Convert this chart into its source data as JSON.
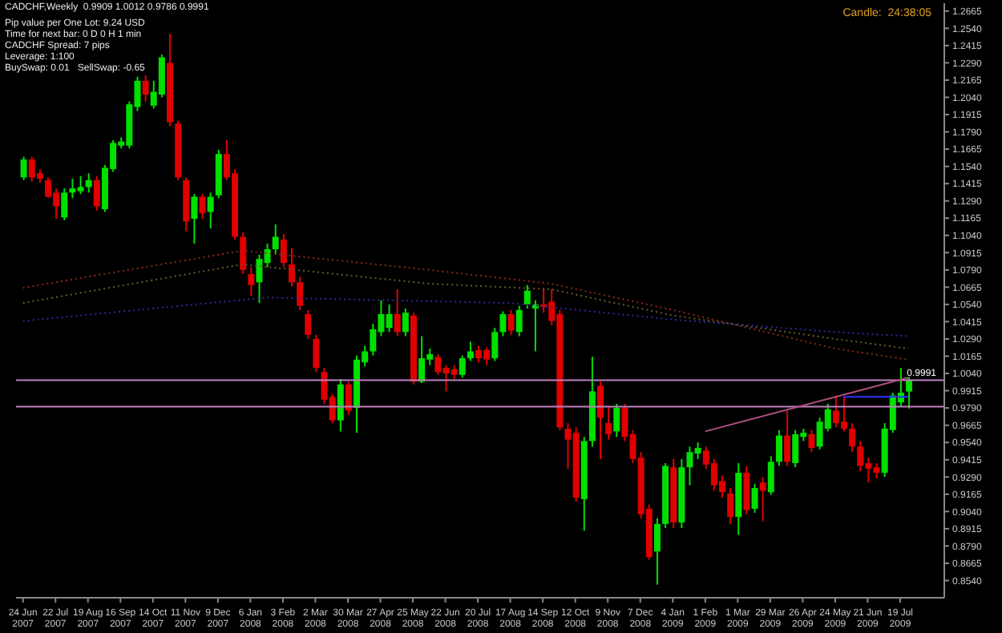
{
  "chart_data": {
    "type": "candlestick",
    "title": "CADCHF,Weekly  0.9909 1.0012 0.9786 0.9991",
    "annotations": [
      "Pip value per One Lot: 9.24 USD",
      "Time for next bar: 0 D 0 H 1 min",
      "CADCHF Spread: 7 pips",
      "Leverage: 1:100",
      "BuySwap: 0.01   SellSwap: -0.65",
      "Candle:  24:38:05"
    ],
    "x": [
      "2007-06-24",
      "2007-07-01",
      "2007-07-08",
      "2007-07-15",
      "2007-07-22",
      "2007-07-29",
      "2007-08-05",
      "2007-08-12",
      "2007-08-19",
      "2007-08-26",
      "2007-09-02",
      "2007-09-09",
      "2007-09-16",
      "2007-09-23",
      "2007-09-30",
      "2007-10-07",
      "2007-10-14",
      "2007-10-21",
      "2007-10-28",
      "2007-11-04",
      "2007-11-11",
      "2007-11-18",
      "2007-11-25",
      "2007-12-02",
      "2007-12-09",
      "2007-12-16",
      "2007-12-23",
      "2007-12-30",
      "2008-01-06",
      "2008-01-13",
      "2008-01-20",
      "2008-01-27",
      "2008-02-03",
      "2008-02-10",
      "2008-02-17",
      "2008-02-24",
      "2008-03-02",
      "2008-03-09",
      "2008-03-16",
      "2008-03-23",
      "2008-03-30",
      "2008-04-06",
      "2008-04-13",
      "2008-04-20",
      "2008-04-27",
      "2008-05-04",
      "2008-05-11",
      "2008-05-18",
      "2008-05-25",
      "2008-06-01",
      "2008-06-08",
      "2008-06-15",
      "2008-06-22",
      "2008-06-29",
      "2008-07-06",
      "2008-07-13",
      "2008-07-20",
      "2008-07-27",
      "2008-08-03",
      "2008-08-10",
      "2008-08-17",
      "2008-08-24",
      "2008-08-31",
      "2008-09-07",
      "2008-09-14",
      "2008-09-21",
      "2008-09-28",
      "2008-10-05",
      "2008-10-12",
      "2008-10-19",
      "2008-10-26",
      "2008-11-02",
      "2008-11-09",
      "2008-11-16",
      "2008-11-23",
      "2008-11-30",
      "2008-12-07",
      "2008-12-14",
      "2008-12-21",
      "2008-12-28",
      "2009-01-04",
      "2009-01-11",
      "2009-01-18",
      "2009-01-25",
      "2009-02-01",
      "2009-02-08",
      "2009-02-15",
      "2009-02-22",
      "2009-03-01",
      "2009-03-08",
      "2009-03-15",
      "2009-03-22",
      "2009-03-29",
      "2009-04-05",
      "2009-04-12",
      "2009-04-19",
      "2009-04-26",
      "2009-05-03",
      "2009-05-10",
      "2009-05-17",
      "2009-05-24",
      "2009-05-31",
      "2009-06-07",
      "2009-06-14",
      "2009-06-21",
      "2009-06-28",
      "2009-07-05",
      "2009-07-12",
      "2009-07-19",
      "2009-07-26"
    ],
    "ohlc": [
      [
        1.146,
        1.161,
        1.144,
        1.159
      ],
      [
        1.159,
        1.161,
        1.143,
        1.146
      ],
      [
        1.149,
        1.152,
        1.142,
        1.145
      ],
      [
        1.144,
        1.146,
        1.131,
        1.132
      ],
      [
        1.135,
        1.138,
        1.116,
        1.125
      ],
      [
        1.117,
        1.138,
        1.115,
        1.135
      ],
      [
        1.135,
        1.145,
        1.131,
        1.138
      ],
      [
        1.136,
        1.147,
        1.134,
        1.139
      ],
      [
        1.139,
        1.149,
        1.135,
        1.144
      ],
      [
        1.144,
        1.147,
        1.122,
        1.125
      ],
      [
        1.123,
        1.155,
        1.121,
        1.153
      ],
      [
        1.152,
        1.173,
        1.15,
        1.171
      ],
      [
        1.169,
        1.175,
        1.167,
        1.172
      ],
      [
        1.169,
        1.201,
        1.167,
        1.199
      ],
      [
        1.197,
        1.219,
        1.194,
        1.216
      ],
      [
        1.216,
        1.22,
        1.201,
        1.206
      ],
      [
        1.198,
        1.216,
        1.196,
        1.208
      ],
      [
        1.206,
        1.235,
        1.204,
        1.233
      ],
      [
        1.229,
        1.25,
        1.183,
        1.186
      ],
      [
        1.185,
        1.187,
        1.144,
        1.146
      ],
      [
        1.144,
        1.146,
        1.107,
        1.114
      ],
      [
        1.116,
        1.134,
        1.098,
        1.132
      ],
      [
        1.132,
        1.134,
        1.116,
        1.12
      ],
      [
        1.121,
        1.135,
        1.109,
        1.132
      ],
      [
        1.133,
        1.166,
        1.131,
        1.163
      ],
      [
        1.163,
        1.173,
        1.144,
        1.146
      ],
      [
        1.149,
        1.152,
        1.101,
        1.103
      ],
      [
        1.103,
        1.106,
        1.076,
        1.079
      ],
      [
        1.076,
        1.081,
        1.06,
        1.068
      ],
      [
        1.07,
        1.09,
        1.055,
        1.087
      ],
      [
        1.084,
        1.098,
        1.081,
        1.094
      ],
      [
        1.094,
        1.112,
        1.09,
        1.103
      ],
      [
        1.101,
        1.105,
        1.081,
        1.084
      ],
      [
        1.083,
        1.095,
        1.067,
        1.07
      ],
      [
        1.07,
        1.074,
        1.05,
        1.053
      ],
      [
        1.047,
        1.05,
        1.029,
        1.032
      ],
      [
        1.029,
        1.032,
        1.005,
        1.008
      ],
      [
        1.005,
        1.008,
        0.982,
        0.985
      ],
      [
        0.987,
        0.989,
        0.968,
        0.97
      ],
      [
        0.97,
        1.0,
        0.962,
        0.996
      ],
      [
        0.996,
        0.998,
        0.974,
        0.977
      ],
      [
        0.979,
        1.017,
        0.961,
        1.014
      ],
      [
        1.012,
        1.024,
        1.009,
        1.02
      ],
      [
        1.02,
        1.04,
        1.017,
        1.036
      ],
      [
        1.034,
        1.057,
        1.031,
        1.047
      ],
      [
        1.037,
        1.054,
        1.034,
        1.047
      ],
      [
        1.047,
        1.065,
        1.031,
        1.034
      ],
      [
        1.034,
        1.051,
        1.031,
        1.048
      ],
      [
        1.046,
        1.048,
        0.996,
        0.998
      ],
      [
        0.998,
        1.031,
        0.997,
        1.015
      ],
      [
        1.014,
        1.022,
        1.01,
        1.018
      ],
      [
        1.016,
        1.018,
        1.003,
        1.005
      ],
      [
        1.008,
        1.01,
        0.991,
        1.004
      ],
      [
        1.007,
        1.01,
        1.0,
        1.003
      ],
      [
        1.003,
        1.017,
        1.001,
        1.015
      ],
      [
        1.015,
        1.027,
        1.013,
        1.02
      ],
      [
        1.021,
        1.024,
        1.012,
        1.015
      ],
      [
        1.021,
        1.023,
        1.01,
        1.014
      ],
      [
        1.015,
        1.037,
        1.013,
        1.034
      ],
      [
        1.034,
        1.049,
        1.031,
        1.047
      ],
      [
        1.047,
        1.05,
        1.032,
        1.035
      ],
      [
        1.034,
        1.053,
        1.031,
        1.05
      ],
      [
        1.054,
        1.068,
        1.051,
        1.064
      ],
      [
        1.051,
        1.057,
        1.02,
        1.054
      ],
      [
        1.054,
        1.065,
        1.048,
        1.052
      ],
      [
        1.056,
        1.065,
        1.039,
        1.042
      ],
      [
        1.047,
        1.05,
        0.963,
        0.965
      ],
      [
        0.964,
        0.968,
        0.935,
        0.956
      ],
      [
        0.961,
        0.965,
        0.911,
        0.914
      ],
      [
        0.913,
        0.958,
        0.89,
        0.955
      ],
      [
        0.955,
        1.016,
        0.951,
        0.991
      ],
      [
        0.995,
        0.998,
        0.942,
        0.972
      ],
      [
        0.968,
        0.98,
        0.956,
        0.96
      ],
      [
        0.962,
        0.982,
        0.958,
        0.979
      ],
      [
        0.979,
        0.982,
        0.955,
        0.958
      ],
      [
        0.96,
        0.963,
        0.939,
        0.942
      ],
      [
        0.943,
        0.947,
        0.899,
        0.902
      ],
      [
        0.906,
        0.909,
        0.869,
        0.871
      ],
      [
        0.875,
        0.899,
        0.851,
        0.895
      ],
      [
        0.895,
        0.939,
        0.892,
        0.937
      ],
      [
        0.936,
        0.942,
        0.892,
        0.896
      ],
      [
        0.896,
        0.942,
        0.892,
        0.936
      ],
      [
        0.936,
        0.951,
        0.923,
        0.947
      ],
      [
        0.946,
        0.954,
        0.942,
        0.95
      ],
      [
        0.948,
        0.951,
        0.935,
        0.938
      ],
      [
        0.939,
        0.942,
        0.919,
        0.923
      ],
      [
        0.926,
        0.93,
        0.914,
        0.918
      ],
      [
        0.917,
        0.921,
        0.895,
        0.9
      ],
      [
        0.9,
        0.939,
        0.887,
        0.932
      ],
      [
        0.932,
        0.937,
        0.902,
        0.905
      ],
      [
        0.906,
        0.924,
        0.903,
        0.921
      ],
      [
        0.925,
        0.929,
        0.897,
        0.919
      ],
      [
        0.918,
        0.944,
        0.916,
        0.94
      ],
      [
        0.94,
        0.963,
        0.937,
        0.959
      ],
      [
        0.959,
        0.977,
        0.937,
        0.94
      ],
      [
        0.939,
        0.963,
        0.936,
        0.96
      ],
      [
        0.958,
        0.964,
        0.955,
        0.961
      ],
      [
        0.96,
        0.963,
        0.947,
        0.95
      ],
      [
        0.951,
        0.972,
        0.949,
        0.969
      ],
      [
        0.964,
        0.982,
        0.962,
        0.978
      ],
      [
        0.977,
        0.988,
        0.965,
        0.968
      ],
      [
        0.969,
        0.987,
        0.962,
        0.964
      ],
      [
        0.964,
        0.968,
        0.947,
        0.951
      ],
      [
        0.951,
        0.955,
        0.933,
        0.937
      ],
      [
        0.939,
        0.943,
        0.925,
        0.935
      ],
      [
        0.936,
        0.939,
        0.928,
        0.932
      ],
      [
        0.932,
        0.968,
        0.929,
        0.964
      ],
      [
        0.963,
        0.99,
        0.961,
        0.988
      ],
      [
        0.983,
        1.008,
        0.98,
        0.99
      ],
      [
        0.9909,
        1.0012,
        0.9786,
        0.9991
      ]
    ],
    "colors": [
      "#00e000",
      "#e00000",
      "#e00000",
      "#e00000",
      "#e00000",
      "#00e000",
      "#00e000",
      "#00e000",
      "#00e000",
      "#e00000",
      "#00e000",
      "#00e000",
      "#00e000",
      "#00e000",
      "#00e000",
      "#e00000",
      "#00e000",
      "#00e000",
      "#e00000",
      "#e00000",
      "#e00000",
      "#00e000",
      "#e00000",
      "#00e000",
      "#00e000",
      "#e00000",
      "#e00000",
      "#e00000",
      "#e00000",
      "#00e000",
      "#00e000",
      "#00e000",
      "#e00000",
      "#e00000",
      "#e00000",
      "#e00000",
      "#e00000",
      "#e00000",
      "#e00000",
      "#00e000",
      "#e00000",
      "#00e000",
      "#00e000",
      "#00e000",
      "#00e000",
      "#00e000",
      "#e00000",
      "#00e000",
      "#e00000",
      "#00e000",
      "#00e000",
      "#e00000",
      "#e00000",
      "#e00000",
      "#00e000",
      "#00e000",
      "#e00000",
      "#e00000",
      "#00e000",
      "#00e000",
      "#e00000",
      "#00e000",
      "#00e000",
      "#00e000",
      "#e00000",
      "#e00000",
      "#e00000",
      "#e00000",
      "#e00000",
      "#00e000",
      "#00e000",
      "#e00000",
      "#e00000",
      "#00e000",
      "#e00000",
      "#e00000",
      "#e00000",
      "#e00000",
      "#00e000",
      "#00e000",
      "#e00000",
      "#00e000",
      "#00e000",
      "#00e000",
      "#e00000",
      "#e00000",
      "#e00000",
      "#e00000",
      "#00e000",
      "#e00000",
      "#00e000",
      "#e00000",
      "#00e000",
      "#00e000",
      "#e00000",
      "#00e000",
      "#00e000",
      "#e00000",
      "#00e000",
      "#00e000",
      "#e00000",
      "#e00000",
      "#e00000",
      "#e00000",
      "#e00000",
      "#e00000",
      "#00e000",
      "#00e000",
      "#00e000",
      "#00e000"
    ],
    "series": [
      {
        "type": "line",
        "color": "#8b2a1a",
        "line_style": "dotted",
        "x": [
          "2007-06-24",
          "2007-12-30",
          "2008-06-08",
          "2008-09-21",
          "2009-01-04",
          "2009-05-24",
          "2009-07-26"
        ],
        "values": [
          1.066,
          1.093,
          1.079,
          1.069,
          1.05,
          1.022,
          1.014
        ]
      },
      {
        "type": "line",
        "color": "#6b5a2a",
        "line_style": "dotted",
        "x": [
          "2007-06-24",
          "2007-12-30",
          "2008-06-08",
          "2008-09-21",
          "2009-01-04",
          "2009-05-24",
          "2009-07-26"
        ],
        "values": [
          1.055,
          1.083,
          1.069,
          1.065,
          1.046,
          1.029,
          1.022
        ]
      },
      {
        "type": "line",
        "color": "#2a2a9b",
        "line_style": "dotted",
        "x": [
          "2007-06-24",
          "2008-01-20",
          "2008-08-17",
          "2009-01-04",
          "2009-05-24",
          "2009-07-26"
        ],
        "values": [
          1.042,
          1.059,
          1.055,
          1.043,
          1.034,
          1.031
        ]
      },
      {
        "type": "line",
        "color": "#b05080",
        "line_style": "solid",
        "x": [
          "2009-02-01",
          "2009-07-26"
        ],
        "values": [
          0.962,
          1.001
        ]
      },
      {
        "type": "line",
        "color": "#3030ff",
        "line_style": "solid",
        "x": [
          "2009-05-31",
          "2009-07-26"
        ],
        "values": [
          0.987,
          0.987
        ]
      }
    ],
    "ref_lines": [
      {
        "axis": "y",
        "value": 0.9991,
        "label": "0.9991",
        "color": "#c080c0"
      },
      {
        "axis": "y",
        "value": 0.98,
        "color": "#c080c0"
      }
    ],
    "xlim": [
      "2007-06-18",
      "2009-08-26"
    ],
    "xticks": [
      {
        "value": "2007-06-24",
        "label": "24 Jun 2007"
      },
      {
        "value": "2007-07-22",
        "label": "22 Jul 2007"
      },
      {
        "value": "2007-08-19",
        "label": "19 Aug 2007"
      },
      {
        "value": "2007-09-16",
        "label": "16 Sep 2007"
      },
      {
        "value": "2007-10-14",
        "label": "14 Oct 2007"
      },
      {
        "value": "2007-11-11",
        "label": "11 Nov 2007"
      },
      {
        "value": "2007-12-09",
        "label": "9 Dec 2007"
      },
      {
        "value": "2008-01-06",
        "label": "6 Jan 2008"
      },
      {
        "value": "2008-02-03",
        "label": "3 Feb 2008"
      },
      {
        "value": "2008-03-02",
        "label": "2 Mar 2008"
      },
      {
        "value": "2008-03-30",
        "label": "30 Mar 2008"
      },
      {
        "value": "2008-04-27",
        "label": "27 Apr 2008"
      },
      {
        "value": "2008-05-25",
        "label": "25 May 2008"
      },
      {
        "value": "2008-06-22",
        "label": "22 Jun 2008"
      },
      {
        "value": "2008-07-20",
        "label": "20 Jul 2008"
      },
      {
        "value": "2008-08-17",
        "label": "17 Aug 2008"
      },
      {
        "value": "2008-09-14",
        "label": "14 Sep 2008"
      },
      {
        "value": "2008-10-12",
        "label": "12 Oct 2008"
      },
      {
        "value": "2008-11-09",
        "label": "9 Nov 2008"
      },
      {
        "value": "2008-12-07",
        "label": "7 Dec 2008"
      },
      {
        "value": "2009-01-04",
        "label": "4 Jan 2009"
      },
      {
        "value": "2009-02-01",
        "label": "1 Feb 2009"
      },
      {
        "value": "2009-03-01",
        "label": "1 Mar 2009"
      },
      {
        "value": "2009-03-29",
        "label": "29 Mar 2009"
      },
      {
        "value": "2009-04-26",
        "label": "26 Apr 2009"
      },
      {
        "value": "2009-05-24",
        "label": "24 May 2009"
      },
      {
        "value": "2009-06-21",
        "label": "21 Jun 2009"
      },
      {
        "value": "2009-07-19",
        "label": "19 Jul 2009"
      }
    ],
    "ylim": [
      0.8415,
      1.2722
    ],
    "yticks": [
      {
        "value": 0.854,
        "label": "0.8540"
      },
      {
        "value": 0.8665,
        "label": "0.8665"
      },
      {
        "value": 0.879,
        "label": "0.8790"
      },
      {
        "value": 0.8915,
        "label": "0.8915"
      },
      {
        "value": 0.904,
        "label": "0.9040"
      },
      {
        "value": 0.9165,
        "label": "0.9165"
      },
      {
        "value": 0.929,
        "label": "0.9290"
      },
      {
        "value": 0.9415,
        "label": "0.9415"
      },
      {
        "value": 0.954,
        "label": "0.9540"
      },
      {
        "value": 0.9665,
        "label": "0.9665"
      },
      {
        "value": 0.979,
        "label": "0.9790"
      },
      {
        "value": 0.9915,
        "label": "0.9915"
      },
      {
        "value": 1.004,
        "label": "1.0040"
      },
      {
        "value": 1.0165,
        "label": "1.0165"
      },
      {
        "value": 1.029,
        "label": "1.0290"
      },
      {
        "value": 1.0415,
        "label": "1.0415"
      },
      {
        "value": 1.054,
        "label": "1.0540"
      },
      {
        "value": 1.0665,
        "label": "1.0665"
      },
      {
        "value": 1.079,
        "label": "1.0790"
      },
      {
        "value": 1.0915,
        "label": "1.0915"
      },
      {
        "value": 1.104,
        "label": "1.1040"
      },
      {
        "value": 1.1165,
        "label": "1.1165"
      },
      {
        "value": 1.129,
        "label": "1.1290"
      },
      {
        "value": 1.1415,
        "label": "1.1415"
      },
      {
        "value": 1.154,
        "label": "1.1540"
      },
      {
        "value": 1.1665,
        "label": "1.1665"
      },
      {
        "value": 1.179,
        "label": "1.1790"
      },
      {
        "value": 1.1915,
        "label": "1.1915"
      },
      {
        "value": 1.204,
        "label": "1.2040"
      },
      {
        "value": 1.2165,
        "label": "1.2165"
      },
      {
        "value": 1.229,
        "label": "1.2290"
      },
      {
        "value": 1.2415,
        "label": "1.2415"
      },
      {
        "value": 1.254,
        "label": "1.2540"
      },
      {
        "value": 1.2665,
        "label": "1.2665"
      }
    ]
  }
}
